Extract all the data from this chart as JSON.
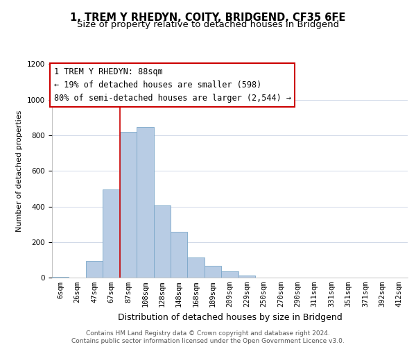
{
  "title": "1, TREM Y RHEDYN, COITY, BRIDGEND, CF35 6FE",
  "subtitle": "Size of property relative to detached houses in Bridgend",
  "xlabel": "Distribution of detached houses by size in Bridgend",
  "ylabel": "Number of detached properties",
  "categories": [
    "6sqm",
    "26sqm",
    "47sqm",
    "67sqm",
    "87sqm",
    "108sqm",
    "128sqm",
    "148sqm",
    "168sqm",
    "189sqm",
    "209sqm",
    "229sqm",
    "250sqm",
    "270sqm",
    "290sqm",
    "311sqm",
    "331sqm",
    "351sqm",
    "371sqm",
    "392sqm",
    "412sqm"
  ],
  "values": [
    5,
    0,
    95,
    495,
    820,
    848,
    405,
    258,
    112,
    68,
    35,
    12,
    0,
    0,
    0,
    0,
    0,
    0,
    0,
    0,
    0
  ],
  "bar_color": "#b8cce4",
  "bar_edge_color": "#7ba7c9",
  "highlight_bar_index": 4,
  "vline_color": "#cc0000",
  "vline_x": 4,
  "annotation_line1": "1 TREM Y RHEDYN: 88sqm",
  "annotation_line2": "← 19% of detached houses are smaller (598)",
  "annotation_line3": "80% of semi-detached houses are larger (2,544) →",
  "annotation_box_color": "#ffffff",
  "annotation_box_edge_color": "#cc0000",
  "ylim": [
    0,
    1200
  ],
  "yticks": [
    0,
    200,
    400,
    600,
    800,
    1000,
    1200
  ],
  "footer_line1": "Contains HM Land Registry data © Crown copyright and database right 2024.",
  "footer_line2": "Contains public sector information licensed under the Open Government Licence v3.0.",
  "bg_color": "#ffffff",
  "grid_color": "#d0d8e8",
  "title_fontsize": 10.5,
  "subtitle_fontsize": 9.5,
  "xlabel_fontsize": 9,
  "ylabel_fontsize": 8,
  "tick_fontsize": 7.5,
  "footer_fontsize": 6.5,
  "annotation_fontsize": 8.5
}
